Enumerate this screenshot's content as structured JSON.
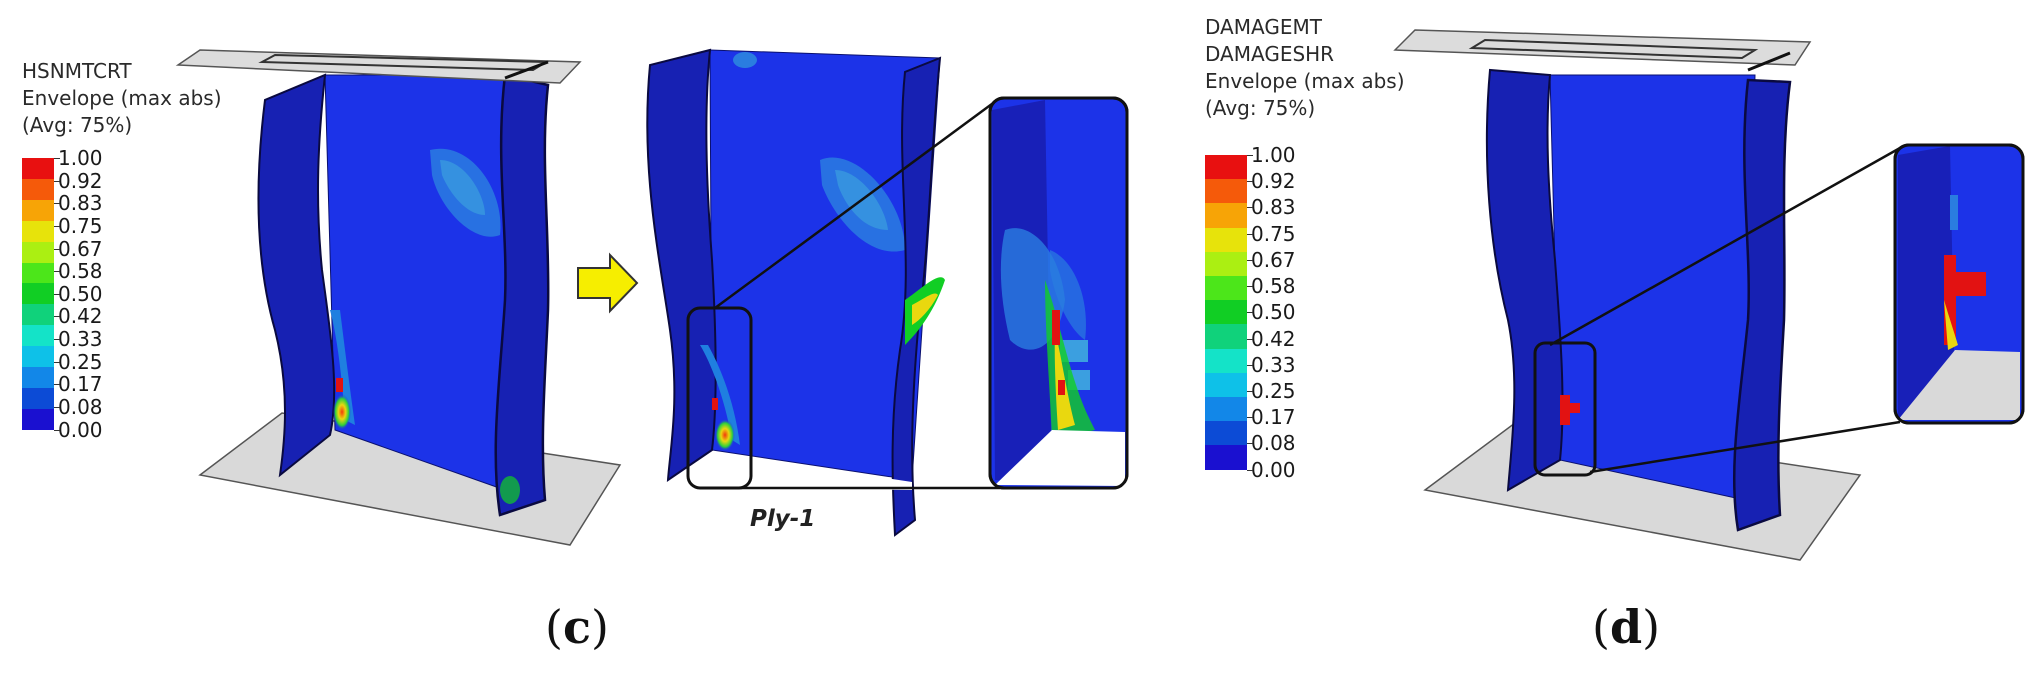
{
  "legend_left": {
    "title_lines": [
      "HSNMTCRT",
      "Envelope (max abs)",
      "(Avg: 75%)"
    ],
    "ticks": [
      "1.00",
      "0.92",
      "0.83",
      "0.75",
      "0.67",
      "0.58",
      "0.50",
      "0.42",
      "0.33",
      "0.25",
      "0.17",
      "0.08",
      "0.00"
    ]
  },
  "legend_right": {
    "title_lines": [
      "DAMAGEMT",
      "DAMAGESHR",
      "Envelope (max abs)",
      "(Avg: 75%)"
    ],
    "ticks": [
      "1.00",
      "0.92",
      "0.83",
      "0.75",
      "0.67",
      "0.58",
      "0.50",
      "0.42",
      "0.33",
      "0.25",
      "0.17",
      "0.08",
      "0.00"
    ]
  },
  "colorbar_colors": [
    "#e81010",
    "#f55a0a",
    "#f7a406",
    "#e7e30b",
    "#abef12",
    "#4ce61a",
    "#11ce24",
    "#10d27b",
    "#14e3c8",
    "#0ec1e8",
    "#1287e8",
    "#0c4bd6",
    "#1a10d0"
  ],
  "ply_label": "Ply-1",
  "captions": {
    "left": {
      "open": "(",
      "letter": "c",
      "close": ")"
    },
    "right": {
      "open": "(",
      "letter": "d",
      "close": ")"
    }
  },
  "colors": {
    "plate": "#d8d8d8",
    "panel_blue": "#1a30e6",
    "flange_blue": "#1820b8",
    "arrow_yellow": "#f6ee00"
  }
}
